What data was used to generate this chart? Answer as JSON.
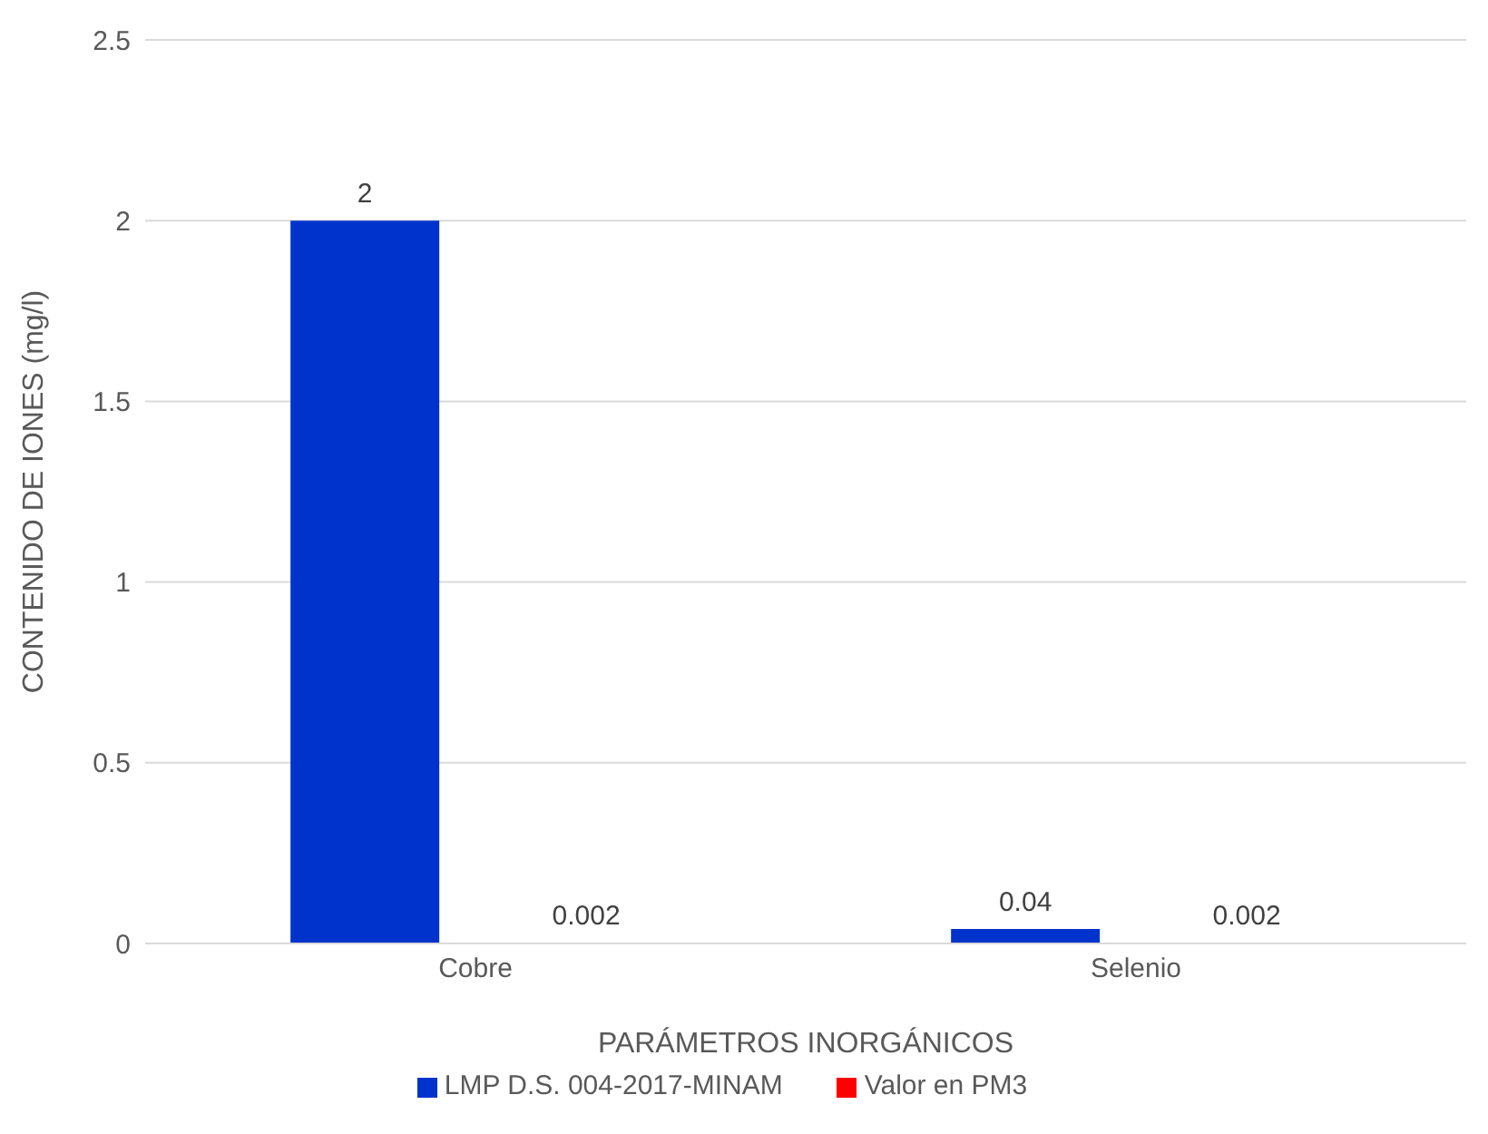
{
  "chart_data": {
    "type": "bar",
    "xlabel": "PARÁMETROS INORGÁNICOS",
    "ylabel": "CONTENIDO DE IONES (mg/l)",
    "categories": [
      "Cobre",
      "Selenio"
    ],
    "series": [
      {
        "name": "LMP D.S. 004-2017-MINAM",
        "color": "#0033cc",
        "values": [
          2,
          0.04
        ]
      },
      {
        "name": "Valor en PM3",
        "color": "#ff0000",
        "values": [
          0.002,
          0.002
        ]
      }
    ],
    "ylim": [
      0,
      2.5
    ],
    "yticks": [
      0,
      0.5,
      1,
      1.5,
      2,
      2.5
    ],
    "grid": "y",
    "legend": "bottom",
    "data_labels": true
  }
}
